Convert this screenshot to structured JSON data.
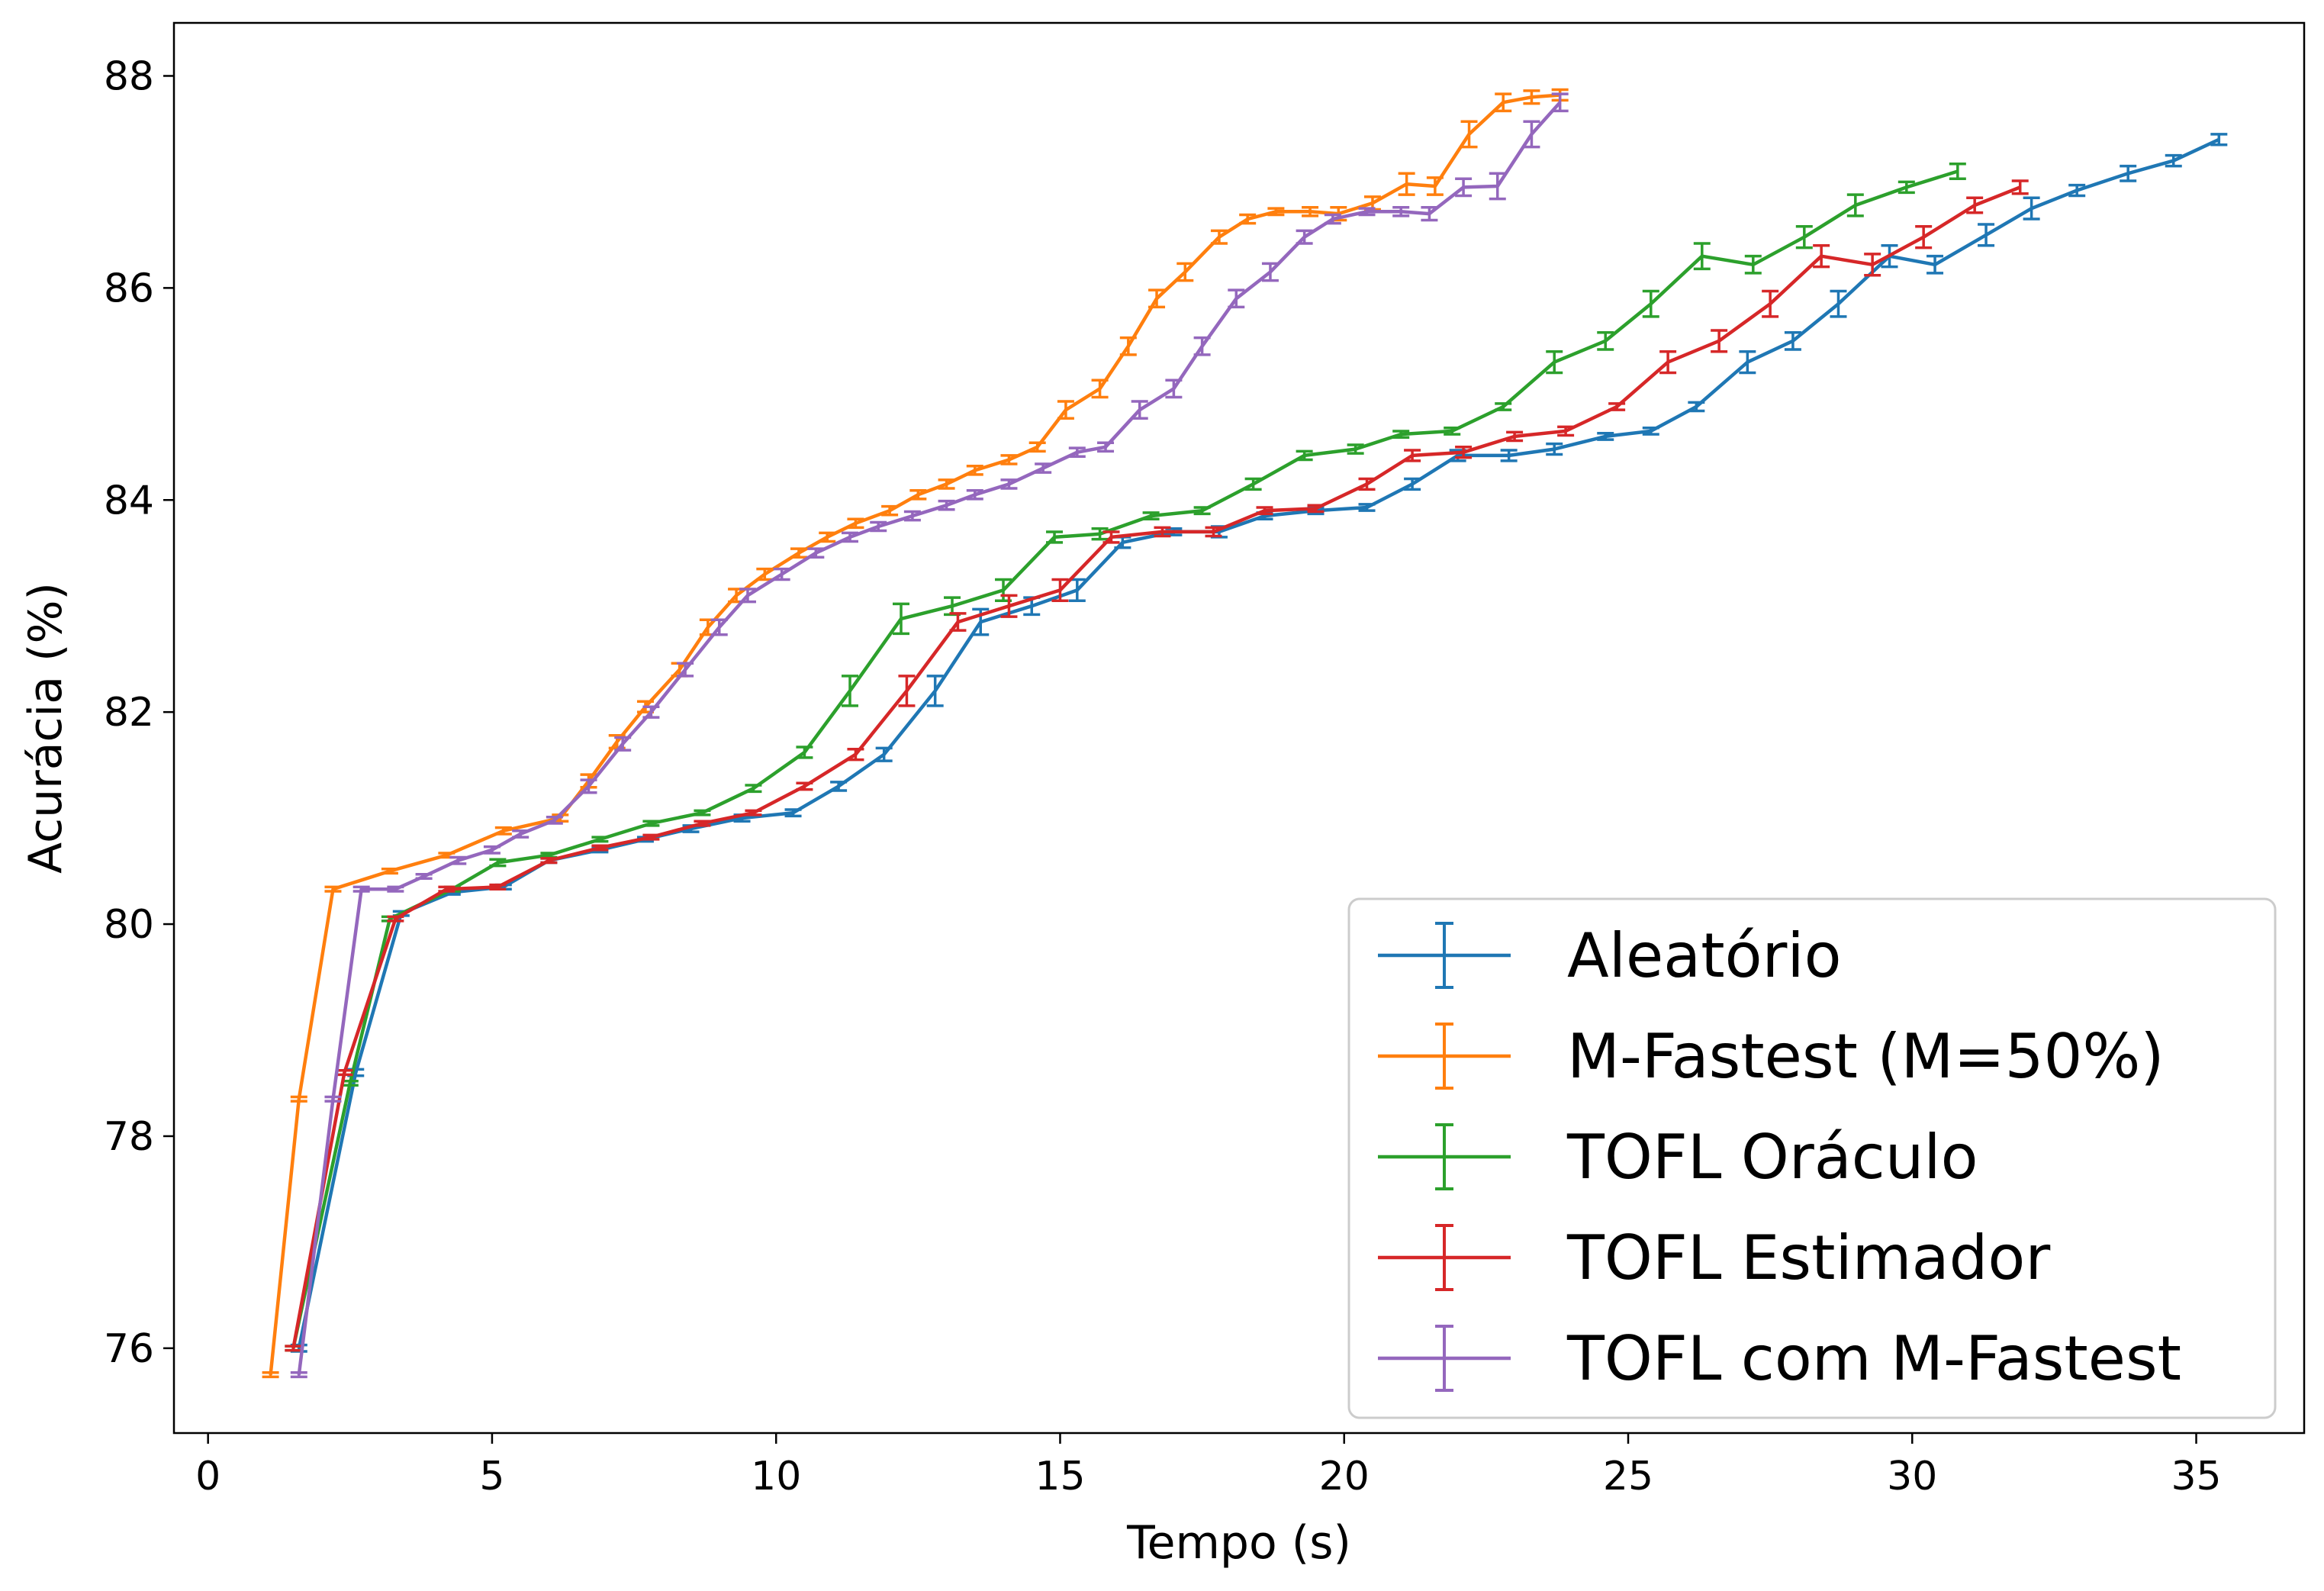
{
  "chart_data": {
    "type": "line",
    "title": "",
    "xlabel": "Tempo (s)",
    "ylabel": "Acurácia (%)",
    "xlim": [
      -0.6,
      36.9
    ],
    "ylim": [
      75.2,
      88.5
    ],
    "grid": false,
    "legend_position": "lower-right",
    "x_ticks": [
      0,
      5,
      10,
      15,
      20,
      25,
      30,
      35
    ],
    "y_ticks": [
      76,
      78,
      80,
      82,
      84,
      86,
      88
    ],
    "x_tick_labels": [
      "0",
      "5",
      "10",
      "15",
      "20",
      "25",
      "30",
      "35"
    ],
    "y_tick_labels": [
      "76",
      "78",
      "80",
      "82",
      "84",
      "86",
      "88"
    ],
    "error_bars": true,
    "series": [
      {
        "name": "Aleatório",
        "color": "#1f77b4",
        "x": [
          1.6,
          2.6,
          3.4,
          4.3,
          5.2,
          6.0,
          6.9,
          7.7,
          8.5,
          9.4,
          10.3,
          11.1,
          11.9,
          12.8,
          13.6,
          14.5,
          15.3,
          16.1,
          17.0,
          17.8,
          18.6,
          19.5,
          20.4,
          21.2,
          22.0,
          22.9,
          23.7,
          24.6,
          25.4,
          26.2,
          27.1,
          27.9,
          28.7,
          29.6,
          30.4,
          31.3,
          32.1,
          32.9,
          33.8,
          34.6,
          35.4
        ],
        "y": [
          76.0,
          78.6,
          80.1,
          80.3,
          80.35,
          80.6,
          80.7,
          80.8,
          80.9,
          81.0,
          81.05,
          81.3,
          81.6,
          82.2,
          82.85,
          83.0,
          83.15,
          83.6,
          83.7,
          83.7,
          83.85,
          83.9,
          83.93,
          84.15,
          84.42,
          84.42,
          84.48,
          84.6,
          84.65,
          84.88,
          85.3,
          85.5,
          85.85,
          86.3,
          86.22,
          86.5,
          86.75,
          86.92,
          87.08,
          87.2,
          87.4
        ],
        "err": [
          0.03,
          0.03,
          0.02,
          0.02,
          0.02,
          0.02,
          0.02,
          0.02,
          0.03,
          0.03,
          0.03,
          0.04,
          0.06,
          0.14,
          0.12,
          0.08,
          0.1,
          0.05,
          0.03,
          0.05,
          0.03,
          0.03,
          0.03,
          0.05,
          0.05,
          0.05,
          0.05,
          0.03,
          0.03,
          0.04,
          0.1,
          0.08,
          0.12,
          0.1,
          0.08,
          0.1,
          0.1,
          0.05,
          0.07,
          0.05,
          0.05
        ]
      },
      {
        "name": "M-Fastest (M=50%)",
        "color": "#ff7f0e",
        "x": [
          1.1,
          1.6,
          2.2,
          3.2,
          4.2,
          5.2,
          6.2,
          6.7,
          7.2,
          7.7,
          8.3,
          8.8,
          9.3,
          9.8,
          10.4,
          10.9,
          11.4,
          12.0,
          12.5,
          13.0,
          13.5,
          14.1,
          14.6,
          15.1,
          15.7,
          16.2,
          16.7,
          17.2,
          17.8,
          18.3,
          18.8,
          19.4,
          19.9,
          20.5,
          21.1,
          21.6,
          22.2,
          22.8,
          23.3,
          23.8
        ],
        "y": [
          75.75,
          78.35,
          80.33,
          80.5,
          80.65,
          80.88,
          81.0,
          81.35,
          81.72,
          82.05,
          82.4,
          82.8,
          83.1,
          83.3,
          83.5,
          83.65,
          83.78,
          83.9,
          84.05,
          84.15,
          84.28,
          84.38,
          84.5,
          84.85,
          85.05,
          85.45,
          85.9,
          86.15,
          86.48,
          86.65,
          86.72,
          86.72,
          86.7,
          86.8,
          86.98,
          86.96,
          87.45,
          87.75,
          87.8,
          87.82
        ],
        "err": [
          0.02,
          0.02,
          0.02,
          0.02,
          0.02,
          0.03,
          0.03,
          0.06,
          0.06,
          0.05,
          0.06,
          0.07,
          0.06,
          0.05,
          0.04,
          0.04,
          0.04,
          0.04,
          0.04,
          0.04,
          0.04,
          0.04,
          0.04,
          0.08,
          0.08,
          0.08,
          0.08,
          0.08,
          0.06,
          0.04,
          0.03,
          0.04,
          0.06,
          0.06,
          0.1,
          0.08,
          0.12,
          0.08,
          0.06,
          0.05
        ]
      },
      {
        "name": "TOFL Oráculo",
        "color": "#2ca02c",
        "x": [
          1.5,
          2.5,
          3.2,
          4.3,
          5.1,
          6.0,
          6.9,
          7.8,
          8.7,
          9.6,
          10.5,
          11.3,
          12.2,
          13.1,
          14.0,
          14.9,
          15.7,
          16.6,
          17.5,
          18.4,
          19.3,
          20.2,
          21.0,
          21.9,
          22.8,
          23.7,
          24.6,
          25.4,
          26.3,
          27.2,
          28.1,
          29.0,
          29.9,
          30.8
        ],
        "y": [
          76.0,
          78.5,
          80.05,
          80.33,
          80.58,
          80.65,
          80.8,
          80.95,
          81.05,
          81.28,
          81.62,
          82.2,
          82.88,
          83.0,
          83.15,
          83.65,
          83.68,
          83.85,
          83.9,
          84.15,
          84.42,
          84.48,
          84.62,
          84.65,
          84.88,
          85.3,
          85.5,
          85.85,
          86.3,
          86.22,
          86.48,
          86.78,
          86.95,
          87.1
        ],
        "err": [
          0.02,
          0.02,
          0.02,
          0.02,
          0.03,
          0.02,
          0.02,
          0.02,
          0.02,
          0.03,
          0.05,
          0.14,
          0.14,
          0.08,
          0.1,
          0.05,
          0.05,
          0.03,
          0.03,
          0.05,
          0.04,
          0.04,
          0.03,
          0.03,
          0.03,
          0.1,
          0.08,
          0.12,
          0.12,
          0.08,
          0.1,
          0.1,
          0.05,
          0.07
        ]
      },
      {
        "name": "TOFL Estimador",
        "color": "#d62728",
        "x": [
          1.5,
          2.4,
          3.3,
          4.2,
          5.1,
          6.0,
          6.9,
          7.8,
          8.7,
          9.6,
          10.5,
          11.4,
          12.3,
          13.2,
          14.1,
          15.0,
          15.9,
          16.8,
          17.7,
          18.6,
          19.5,
          20.4,
          21.2,
          22.1,
          23.0,
          23.9,
          24.8,
          25.7,
          26.6,
          27.5,
          28.4,
          29.3,
          30.2,
          31.1,
          31.9
        ],
        "y": [
          76.0,
          78.6,
          80.05,
          80.33,
          80.35,
          80.6,
          80.72,
          80.82,
          80.95,
          81.05,
          81.3,
          81.6,
          82.2,
          82.85,
          83.0,
          83.15,
          83.65,
          83.7,
          83.7,
          83.9,
          83.92,
          84.15,
          84.42,
          84.45,
          84.6,
          84.65,
          84.88,
          85.3,
          85.5,
          85.85,
          86.3,
          86.22,
          86.48,
          86.78,
          86.95
        ],
        "err": [
          0.02,
          0.02,
          0.02,
          0.02,
          0.02,
          0.02,
          0.02,
          0.02,
          0.02,
          0.02,
          0.03,
          0.05,
          0.14,
          0.08,
          0.1,
          0.1,
          0.05,
          0.04,
          0.04,
          0.03,
          0.03,
          0.05,
          0.05,
          0.05,
          0.04,
          0.04,
          0.03,
          0.1,
          0.1,
          0.12,
          0.1,
          0.1,
          0.1,
          0.07,
          0.06
        ]
      },
      {
        "name": "TOFL com M-Fastest",
        "color": "#9467bd",
        "x": [
          1.6,
          2.2,
          2.7,
          3.3,
          3.8,
          4.4,
          5.0,
          5.5,
          6.1,
          6.7,
          7.3,
          7.8,
          8.4,
          9.0,
          9.5,
          10.1,
          10.7,
          11.3,
          11.8,
          12.4,
          13.0,
          13.5,
          14.1,
          14.7,
          15.3,
          15.8,
          16.4,
          17.0,
          17.5,
          18.1,
          18.7,
          19.3,
          19.8,
          20.4,
          21.0,
          21.5,
          22.1,
          22.7,
          23.3,
          23.8
        ],
        "y": [
          75.75,
          78.35,
          80.33,
          80.33,
          80.45,
          80.6,
          80.7,
          80.85,
          80.98,
          81.3,
          81.7,
          82.0,
          82.4,
          82.8,
          83.1,
          83.3,
          83.5,
          83.65,
          83.75,
          83.85,
          83.95,
          84.05,
          84.15,
          84.3,
          84.45,
          84.5,
          84.85,
          85.05,
          85.45,
          85.9,
          86.15,
          86.48,
          86.65,
          86.72,
          86.72,
          86.7,
          86.95,
          86.96,
          87.45,
          87.75
        ],
        "err": [
          0.02,
          0.02,
          0.02,
          0.02,
          0.02,
          0.03,
          0.03,
          0.03,
          0.03,
          0.06,
          0.06,
          0.05,
          0.06,
          0.07,
          0.06,
          0.05,
          0.04,
          0.04,
          0.04,
          0.04,
          0.04,
          0.04,
          0.04,
          0.04,
          0.04,
          0.04,
          0.08,
          0.08,
          0.08,
          0.08,
          0.08,
          0.06,
          0.04,
          0.03,
          0.04,
          0.06,
          0.08,
          0.12,
          0.12,
          0.08
        ]
      }
    ]
  }
}
